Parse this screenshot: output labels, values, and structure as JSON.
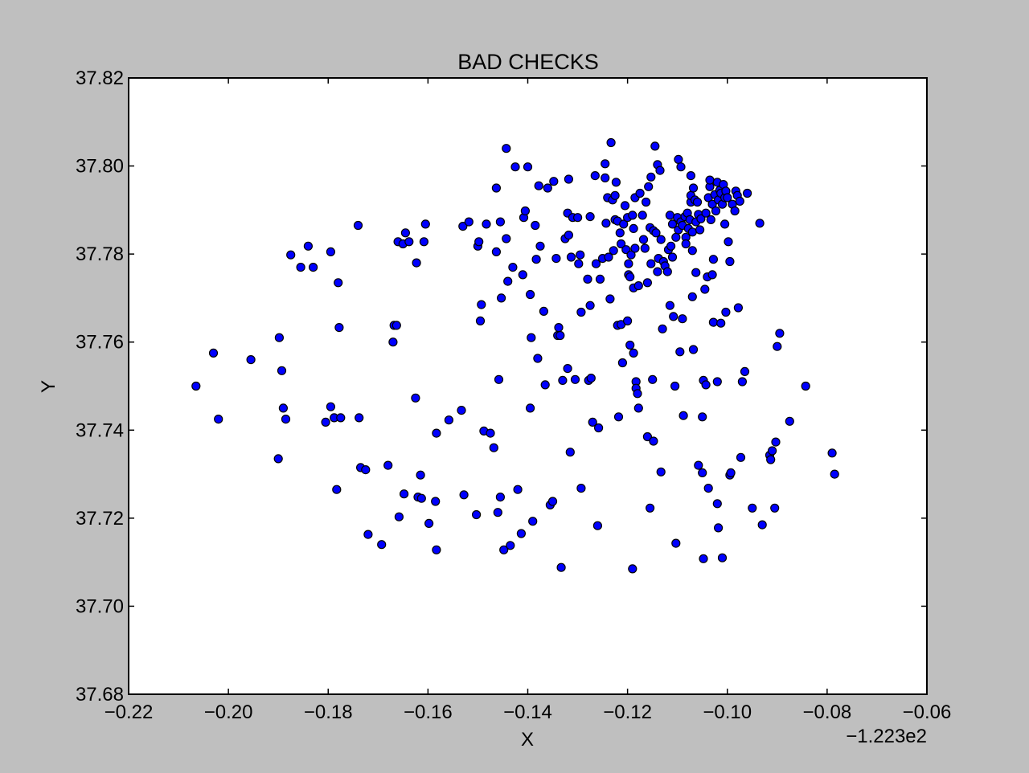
{
  "chart_data": {
    "type": "scatter",
    "title": "BAD CHECKS",
    "xlabel": "X",
    "ylabel": "Y",
    "x_offset_label": "−1.223e2",
    "xlim": [
      -0.22,
      -0.06
    ],
    "ylim": [
      37.68,
      37.82
    ],
    "x_ticks": [
      -0.22,
      -0.2,
      -0.18,
      -0.16,
      -0.14,
      -0.12,
      -0.1,
      -0.08,
      -0.06
    ],
    "y_ticks": [
      37.68,
      37.7,
      37.72,
      37.74,
      37.76,
      37.78,
      37.8,
      37.82
    ],
    "x_tick_labels": [
      "−0.22",
      "−0.20",
      "−0.18",
      "−0.16",
      "−0.14",
      "−0.12",
      "−0.10",
      "−0.08",
      "−0.06"
    ],
    "y_tick_labels": [
      "37.68",
      "37.70",
      "37.72",
      "37.74",
      "37.76",
      "37.78",
      "37.80",
      "37.82"
    ],
    "grid": false,
    "marker_color": "#0000ff",
    "points": [
      [
        -0.2065,
        37.75
      ],
      [
        -0.202,
        37.7425
      ],
      [
        -0.203,
        37.7575
      ],
      [
        -0.1955,
        37.756
      ],
      [
        -0.19,
        37.7335
      ],
      [
        -0.1898,
        37.761
      ],
      [
        -0.1893,
        37.7535
      ],
      [
        -0.189,
        37.745
      ],
      [
        -0.1885,
        37.7425
      ],
      [
        -0.1875,
        37.7798
      ],
      [
        -0.1855,
        37.777
      ],
      [
        -0.184,
        37.7818
      ],
      [
        -0.183,
        37.777
      ],
      [
        -0.1805,
        37.7418
      ],
      [
        -0.1795,
        37.7805
      ],
      [
        -0.1795,
        37.7453
      ],
      [
        -0.1788,
        37.7428
      ],
      [
        -0.1783,
        37.7265
      ],
      [
        -0.178,
        37.7735
      ],
      [
        -0.1778,
        37.7633
      ],
      [
        -0.1775,
        37.7428
      ],
      [
        -0.174,
        37.7865
      ],
      [
        -0.1738,
        37.7428
      ],
      [
        -0.1735,
        37.7315
      ],
      [
        -0.1725,
        37.731
      ],
      [
        -0.172,
        37.7163
      ],
      [
        -0.1693,
        37.714
      ],
      [
        -0.168,
        37.732
      ],
      [
        -0.167,
        37.76
      ],
      [
        -0.1668,
        37.7638
      ],
      [
        -0.1663,
        37.7638
      ],
      [
        -0.166,
        37.7828
      ],
      [
        -0.1658,
        37.7203
      ],
      [
        -0.165,
        37.7823
      ],
      [
        -0.1648,
        37.7255
      ],
      [
        -0.1645,
        37.7848
      ],
      [
        -0.1638,
        37.7828
      ],
      [
        -0.1625,
        37.7473
      ],
      [
        -0.1623,
        37.778
      ],
      [
        -0.162,
        37.7248
      ],
      [
        -0.1615,
        37.7298
      ],
      [
        -0.1613,
        37.7245
      ],
      [
        -0.1608,
        37.7828
      ],
      [
        -0.1605,
        37.7868
      ],
      [
        -0.1598,
        37.7188
      ],
      [
        -0.1585,
        37.7238
      ],
      [
        -0.1583,
        37.7393
      ],
      [
        -0.1583,
        37.7128
      ],
      [
        -0.1558,
        37.7423
      ],
      [
        -0.1533,
        37.7445
      ],
      [
        -0.153,
        37.7863
      ],
      [
        -0.1528,
        37.7253
      ],
      [
        -0.1518,
        37.7873
      ],
      [
        -0.1503,
        37.7208
      ],
      [
        -0.15,
        37.7818
      ],
      [
        -0.1498,
        37.7828
      ],
      [
        -0.1495,
        37.7648
      ],
      [
        -0.1493,
        37.7685
      ],
      [
        -0.1488,
        37.7398
      ],
      [
        -0.1483,
        37.7868
      ],
      [
        -0.1475,
        37.7393
      ],
      [
        -0.1468,
        37.736
      ],
      [
        -0.1463,
        37.7805
      ],
      [
        -0.1463,
        37.795
      ],
      [
        -0.146,
        37.7213
      ],
      [
        -0.1458,
        37.7515
      ],
      [
        -0.1455,
        37.7873
      ],
      [
        -0.1455,
        37.7248
      ],
      [
        -0.1453,
        37.77
      ],
      [
        -0.1448,
        37.7128
      ],
      [
        -0.1443,
        37.804
      ],
      [
        -0.1443,
        37.7835
      ],
      [
        -0.144,
        37.7738
      ],
      [
        -0.1435,
        37.7138
      ],
      [
        -0.143,
        37.777
      ],
      [
        -0.1425,
        37.7998
      ],
      [
        -0.142,
        37.7265
      ],
      [
        -0.1413,
        37.7165
      ],
      [
        -0.141,
        37.7753
      ],
      [
        -0.1408,
        37.7883
      ],
      [
        -0.1405,
        37.7898
      ],
      [
        -0.14,
        37.7998
      ],
      [
        -0.1395,
        37.7708
      ],
      [
        -0.1395,
        37.745
      ],
      [
        -0.1393,
        37.761
      ],
      [
        -0.139,
        37.7193
      ],
      [
        -0.1385,
        37.7865
      ],
      [
        -0.1383,
        37.7788
      ],
      [
        -0.138,
        37.7563
      ],
      [
        -0.1378,
        37.7955
      ],
      [
        -0.1375,
        37.7818
      ],
      [
        -0.1368,
        37.767
      ],
      [
        -0.1365,
        37.7503
      ],
      [
        -0.136,
        37.795
      ],
      [
        -0.1355,
        37.723
      ],
      [
        -0.135,
        37.7238
      ],
      [
        -0.1348,
        37.7965
      ],
      [
        -0.1343,
        37.779
      ],
      [
        -0.134,
        37.7615
      ],
      [
        -0.1338,
        37.7633
      ],
      [
        -0.1335,
        37.7615
      ],
      [
        -0.1333,
        37.7088
      ],
      [
        -0.133,
        37.7513
      ],
      [
        -0.1325,
        37.7835
      ],
      [
        -0.132,
        37.754
      ],
      [
        -0.132,
        37.7893
      ],
      [
        -0.1318,
        37.7843
      ],
      [
        -0.1318,
        37.797
      ],
      [
        -0.1315,
        37.735
      ],
      [
        -0.1313,
        37.7793
      ],
      [
        -0.131,
        37.7883
      ],
      [
        -0.1305,
        37.7515
      ],
      [
        -0.13,
        37.7883
      ],
      [
        -0.1298,
        37.7778
      ],
      [
        -0.1295,
        37.7798
      ],
      [
        -0.1293,
        37.7668
      ],
      [
        -0.1293,
        37.7268
      ],
      [
        -0.128,
        37.7743
      ],
      [
        -0.1278,
        37.7513
      ],
      [
        -0.1275,
        37.7885
      ],
      [
        -0.1275,
        37.7683
      ],
      [
        -0.1273,
        37.7518
      ],
      [
        -0.127,
        37.7418
      ],
      [
        -0.1265,
        37.7978
      ],
      [
        -0.1263,
        37.7778
      ],
      [
        -0.126,
        37.7183
      ],
      [
        -0.1258,
        37.7405
      ],
      [
        -0.1255,
        37.7743
      ],
      [
        -0.125,
        37.779
      ],
      [
        -0.1245,
        37.7973
      ],
      [
        -0.1245,
        37.8005
      ],
      [
        -0.1243,
        37.787
      ],
      [
        -0.124,
        37.7928
      ],
      [
        -0.1238,
        37.7793
      ],
      [
        -0.1235,
        37.7698
      ],
      [
        -0.1233,
        37.8053
      ],
      [
        -0.123,
        37.7923
      ],
      [
        -0.1228,
        37.7808
      ],
      [
        -0.1225,
        37.7878
      ],
      [
        -0.1225,
        37.7933
      ],
      [
        -0.1223,
        37.7963
      ],
      [
        -0.122,
        37.7875
      ],
      [
        -0.122,
        37.7638
      ],
      [
        -0.1218,
        37.743
      ],
      [
        -0.1215,
        37.7848
      ],
      [
        -0.1213,
        37.7823
      ],
      [
        -0.1213,
        37.764
      ],
      [
        -0.121,
        37.7553
      ],
      [
        -0.1208,
        37.7868
      ],
      [
        -0.1205,
        37.791
      ],
      [
        -0.1203,
        37.781
      ],
      [
        -0.12,
        37.7883
      ],
      [
        -0.12,
        37.7648
      ],
      [
        -0.1198,
        37.7778
      ],
      [
        -0.1198,
        37.7753
      ],
      [
        -0.1195,
        37.7593
      ],
      [
        -0.1195,
        37.7748
      ],
      [
        -0.1193,
        37.7798
      ],
      [
        -0.119,
        37.7085
      ],
      [
        -0.119,
        37.7888
      ],
      [
        -0.1188,
        37.7858
      ],
      [
        -0.1188,
        37.7723
      ],
      [
        -0.1188,
        37.7575
      ],
      [
        -0.1185,
        37.7928
      ],
      [
        -0.1185,
        37.7813
      ],
      [
        -0.1183,
        37.751
      ],
      [
        -0.1183,
        37.7495
      ],
      [
        -0.118,
        37.7483
      ],
      [
        -0.1178,
        37.7728
      ],
      [
        -0.1178,
        37.745
      ],
      [
        -0.1175,
        37.7938
      ],
      [
        -0.117,
        37.7888
      ],
      [
        -0.1168,
        37.7833
      ],
      [
        -0.1165,
        37.7813
      ],
      [
        -0.1163,
        37.7918
      ],
      [
        -0.116,
        37.7735
      ],
      [
        -0.116,
        37.7385
      ],
      [
        -0.1158,
        37.7953
      ],
      [
        -0.1155,
        37.786
      ],
      [
        -0.1155,
        37.7223
      ],
      [
        -0.1153,
        37.7975
      ],
      [
        -0.1153,
        37.7778
      ],
      [
        -0.115,
        37.7515
      ],
      [
        -0.1148,
        37.7853
      ],
      [
        -0.1148,
        37.7375
      ],
      [
        -0.1145,
        37.8045
      ],
      [
        -0.1143,
        37.7848
      ],
      [
        -0.114,
        37.8003
      ],
      [
        -0.114,
        37.776
      ],
      [
        -0.1138,
        37.779
      ],
      [
        -0.1135,
        37.799
      ],
      [
        -0.1133,
        37.7833
      ],
      [
        -0.1133,
        37.7305
      ],
      [
        -0.113,
        37.763
      ],
      [
        -0.1128,
        37.7783
      ],
      [
        -0.1125,
        37.7773
      ],
      [
        -0.112,
        37.776
      ],
      [
        -0.1118,
        37.781
      ],
      [
        -0.1115,
        37.7888
      ],
      [
        -0.1115,
        37.7683
      ],
      [
        -0.1113,
        37.7818
      ],
      [
        -0.111,
        37.7868
      ],
      [
        -0.111,
        37.7793
      ],
      [
        -0.1108,
        37.7658
      ],
      [
        -0.1105,
        37.75
      ],
      [
        -0.1103,
        37.7838
      ],
      [
        -0.1103,
        37.7143
      ],
      [
        -0.11,
        37.7883
      ],
      [
        -0.1098,
        37.8015
      ],
      [
        -0.1098,
        37.7855
      ],
      [
        -0.1095,
        37.7578
      ],
      [
        -0.1093,
        37.7998
      ],
      [
        -0.1093,
        37.7873
      ],
      [
        -0.109,
        37.7865
      ],
      [
        -0.109,
        37.7653
      ],
      [
        -0.1088,
        37.7433
      ],
      [
        -0.1085,
        37.7885
      ],
      [
        -0.1083,
        37.7838
      ],
      [
        -0.1083,
        37.7823
      ],
      [
        -0.108,
        37.7893
      ],
      [
        -0.1078,
        37.7858
      ],
      [
        -0.1075,
        37.7878
      ],
      [
        -0.1073,
        37.7918
      ],
      [
        -0.1073,
        37.7978
      ],
      [
        -0.1073,
        37.7933
      ],
      [
        -0.107,
        37.785
      ],
      [
        -0.107,
        37.7808
      ],
      [
        -0.107,
        37.7703
      ],
      [
        -0.1068,
        37.795
      ],
      [
        -0.1068,
        37.7583
      ],
      [
        -0.1065,
        37.7923
      ],
      [
        -0.1063,
        37.7873
      ],
      [
        -0.1063,
        37.7758
      ],
      [
        -0.106,
        37.7918
      ],
      [
        -0.1058,
        37.789
      ],
      [
        -0.1058,
        37.732
      ],
      [
        -0.1055,
        37.7855
      ],
      [
        -0.1053,
        37.788
      ],
      [
        -0.105,
        37.7303
      ],
      [
        -0.105,
        37.743
      ],
      [
        -0.1048,
        37.7513
      ],
      [
        -0.1048,
        37.7108
      ],
      [
        -0.1045,
        37.772
      ],
      [
        -0.1043,
        37.7893
      ],
      [
        -0.1043,
        37.7503
      ],
      [
        -0.104,
        37.7748
      ],
      [
        -0.1038,
        37.7928
      ],
      [
        -0.1038,
        37.7268
      ],
      [
        -0.1035,
        37.7953
      ],
      [
        -0.1035,
        37.7968
      ],
      [
        -0.1033,
        37.7878
      ],
      [
        -0.103,
        37.7913
      ],
      [
        -0.103,
        37.7753
      ],
      [
        -0.1028,
        37.7788
      ],
      [
        -0.1028,
        37.7645
      ],
      [
        -0.1025,
        37.7935
      ],
      [
        -0.1023,
        37.7898
      ],
      [
        -0.102,
        37.7963
      ],
      [
        -0.102,
        37.751
      ],
      [
        -0.102,
        37.7233
      ],
      [
        -0.1018,
        37.7923
      ],
      [
        -0.1018,
        37.7178
      ],
      [
        -0.1015,
        37.7945
      ],
      [
        -0.1013,
        37.7938
      ],
      [
        -0.1013,
        37.7643
      ],
      [
        -0.101,
        37.7913
      ],
      [
        -0.101,
        37.711
      ],
      [
        -0.1008,
        37.7958
      ],
      [
        -0.1005,
        37.7928
      ],
      [
        -0.1005,
        37.7868
      ],
      [
        -0.1003,
        37.7943
      ],
      [
        -0.1003,
        37.7668
      ],
      [
        -0.1,
        37.7928
      ],
      [
        -0.0998,
        37.7828
      ],
      [
        -0.0995,
        37.7783
      ],
      [
        -0.0995,
        37.7298
      ],
      [
        -0.0993,
        37.7303
      ],
      [
        -0.099,
        37.7913
      ],
      [
        -0.0985,
        37.7898
      ],
      [
        -0.0983,
        37.7943
      ],
      [
        -0.098,
        37.7933
      ],
      [
        -0.0978,
        37.7678
      ],
      [
        -0.0975,
        37.792
      ],
      [
        -0.0973,
        37.7338
      ],
      [
        -0.097,
        37.751
      ],
      [
        -0.0965,
        37.7533
      ],
      [
        -0.096,
        37.7938
      ],
      [
        -0.095,
        37.7223
      ],
      [
        -0.0935,
        37.787
      ],
      [
        -0.093,
        37.7185
      ],
      [
        -0.0915,
        37.7343
      ],
      [
        -0.0913,
        37.7333
      ],
      [
        -0.091,
        37.7353
      ],
      [
        -0.0905,
        37.7223
      ],
      [
        -0.0903,
        37.7373
      ],
      [
        -0.09,
        37.759
      ],
      [
        -0.0895,
        37.762
      ],
      [
        -0.0875,
        37.742
      ],
      [
        -0.0843,
        37.75
      ],
      [
        -0.079,
        37.7348
      ],
      [
        -0.0785,
        37.73
      ]
    ]
  }
}
